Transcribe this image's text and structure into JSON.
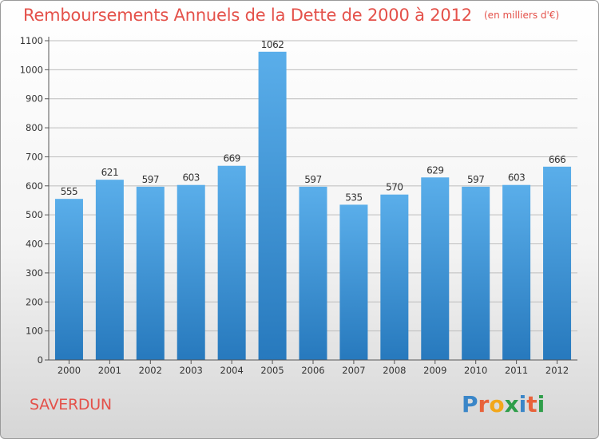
{
  "header": {
    "title": "Remboursements Annuels de la Dette de 2000 à 2012",
    "unit": "(en milliers d'€)"
  },
  "footer": {
    "town": "SAVERDUN",
    "logo": "Proxiti"
  },
  "colors": {
    "title": "#e4514a",
    "bar_top": "#5aaeea",
    "bar_bottom": "#2779bd",
    "gridline": "#bdbdbd"
  },
  "chart_data": {
    "type": "bar",
    "title": "Remboursements Annuels de la Dette de 2000 à 2012",
    "xlabel": "",
    "ylabel": "",
    "categories": [
      "2000",
      "2001",
      "2002",
      "2003",
      "2004",
      "2005",
      "2006",
      "2007",
      "2008",
      "2009",
      "2010",
      "2011",
      "2012"
    ],
    "values": [
      555,
      621,
      597,
      603,
      669,
      1062,
      597,
      535,
      570,
      629,
      597,
      603,
      666
    ],
    "ylim": [
      0,
      1100
    ],
    "yticks": [
      0,
      100,
      200,
      300,
      400,
      500,
      600,
      700,
      800,
      900,
      1000,
      1100
    ],
    "grid": true,
    "data_labels": true
  }
}
